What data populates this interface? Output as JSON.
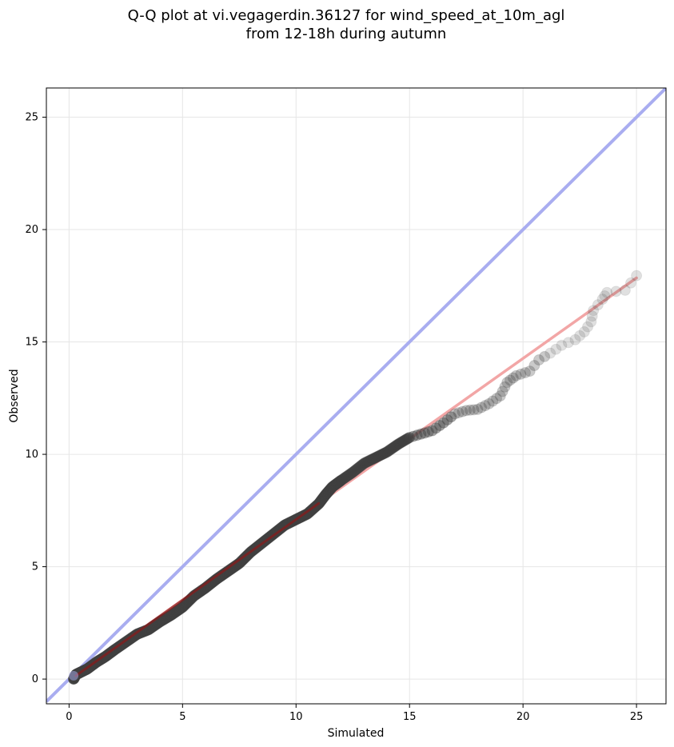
{
  "chart_data": {
    "type": "scatter",
    "title": {
      "line1": "Q-Q plot at vi.vegagerdin.36127 for wind_speed_at_10m_agl",
      "line2": "from 12-18h during autumn"
    },
    "xlabel": "Simulated",
    "ylabel": "Observed",
    "xlim": [
      -1.0,
      26.3
    ],
    "ylim": [
      -1.1,
      26.3
    ],
    "xticks": [
      0,
      5,
      10,
      15,
      20,
      25
    ],
    "yticks": [
      0,
      5,
      10,
      15,
      20,
      25
    ],
    "grid": true,
    "colors": {
      "points": "#404040",
      "identity_line": "#a9adf0",
      "fit_line": "#f2a6a6",
      "fit_line_dense": "#8b1a1a"
    },
    "series": [
      {
        "kind": "line",
        "role": "identity",
        "points": [
          [
            -1.0,
            -1.0
          ],
          [
            26.3,
            26.3
          ]
        ]
      },
      {
        "kind": "line",
        "role": "fit",
        "points": [
          [
            0.3,
            0.15
          ],
          [
            25.0,
            17.85
          ]
        ]
      },
      {
        "kind": "points",
        "role": "quantiles",
        "points": [
          [
            0.2,
            0.0
          ],
          [
            0.3,
            0.2
          ],
          [
            0.5,
            0.3
          ],
          [
            0.8,
            0.45
          ],
          [
            1.2,
            0.75
          ],
          [
            1.6,
            1.0
          ],
          [
            2.0,
            1.3
          ],
          [
            2.5,
            1.65
          ],
          [
            3.0,
            2.0
          ],
          [
            3.5,
            2.2
          ],
          [
            4.0,
            2.55
          ],
          [
            4.5,
            2.85
          ],
          [
            5.0,
            3.2
          ],
          [
            5.5,
            3.7
          ],
          [
            6.0,
            4.05
          ],
          [
            6.5,
            4.45
          ],
          [
            7.0,
            4.8
          ],
          [
            7.5,
            5.15
          ],
          [
            8.0,
            5.65
          ],
          [
            8.5,
            6.05
          ],
          [
            9.0,
            6.45
          ],
          [
            9.5,
            6.85
          ],
          [
            10.0,
            7.1
          ],
          [
            10.5,
            7.35
          ],
          [
            11.0,
            7.8
          ],
          [
            11.3,
            8.2
          ],
          [
            11.6,
            8.55
          ],
          [
            12.0,
            8.85
          ],
          [
            12.5,
            9.2
          ],
          [
            13.0,
            9.6
          ],
          [
            13.5,
            9.85
          ],
          [
            14.0,
            10.1
          ],
          [
            14.5,
            10.45
          ],
          [
            15.0,
            10.75
          ],
          [
            15.5,
            10.9
          ],
          [
            16.0,
            11.05
          ],
          [
            16.5,
            11.4
          ],
          [
            17.0,
            11.8
          ],
          [
            17.5,
            11.95
          ],
          [
            18.0,
            12.0
          ],
          [
            18.5,
            12.25
          ],
          [
            19.0,
            12.6
          ],
          [
            19.3,
            13.2
          ],
          [
            19.7,
            13.5
          ],
          [
            20.3,
            13.7
          ],
          [
            20.7,
            14.2
          ],
          [
            21.2,
            14.5
          ],
          [
            21.7,
            14.85
          ],
          [
            22.3,
            15.1
          ],
          [
            22.7,
            15.45
          ],
          [
            23.0,
            15.9
          ],
          [
            23.1,
            16.4
          ],
          [
            23.5,
            16.9
          ],
          [
            23.7,
            17.2
          ],
          [
            24.5,
            17.3
          ],
          [
            25.0,
            17.95
          ]
        ]
      }
    ]
  }
}
